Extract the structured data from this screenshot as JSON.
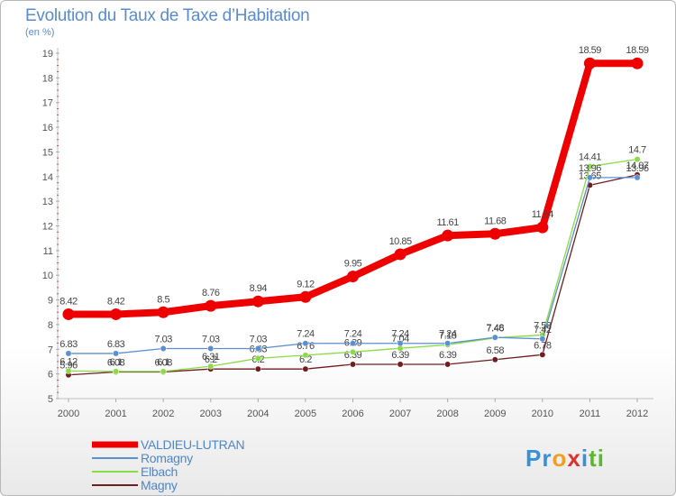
{
  "header": {
    "title": "Evolution du Taux de Taxe d’Habitation",
    "unit": "(en %)"
  },
  "logo": {
    "parts": [
      {
        "text": "Pr",
        "color": "#3a8fd9"
      },
      {
        "text": "o",
        "color": "#f0a020"
      },
      {
        "text": "x",
        "color": "#e03030"
      },
      {
        "text": "i",
        "color": "#3a8fd9"
      },
      {
        "text": "ti",
        "color": "#5ab82e"
      }
    ]
  },
  "chart_data": {
    "type": "line",
    "categories": [
      "2000",
      "2001",
      "2002",
      "2003",
      "2004",
      "2005",
      "2006",
      "2007",
      "2008",
      "2009",
      "2010",
      "2011",
      "2012"
    ],
    "ylim": [
      5,
      19
    ],
    "yticks": [
      "5",
      "6",
      "7",
      "8",
      "9",
      "10",
      "11",
      "12",
      "13",
      "14",
      "15",
      "16",
      "17",
      "18",
      "19"
    ],
    "grid": false,
    "legend_position": "bottom-left",
    "series": [
      {
        "name": "Magny",
        "color": "#6e1e1e",
        "values": [
          5.96,
          6.08,
          6.08,
          6.2,
          6.2,
          6.2,
          6.39,
          6.39,
          6.39,
          6.58,
          6.78,
          13.65,
          14.07
        ],
        "labels": [
          "5.96",
          "6.08",
          "6.08",
          "6.2",
          "6.2",
          "6.2",
          "6.39",
          "6.39",
          "6.39",
          "6.58",
          "6.78",
          "13.65",
          "14.07"
        ]
      },
      {
        "name": "Elbach",
        "color": "#88dd44",
        "values": [
          6.12,
          6.1,
          6.1,
          6.31,
          6.63,
          6.76,
          6.89,
          7.04,
          7.18,
          7.46,
          7.58,
          14.41,
          14.7
        ],
        "labels": [
          "6.12",
          "6.1",
          "6.1",
          "6.31",
          "6.63",
          "6.76",
          "6.89",
          "7.04",
          "7.18",
          "7.46",
          "7.58",
          "14.41",
          "14.7"
        ]
      },
      {
        "name": "Romagny",
        "color": "#5b8fd0",
        "values": [
          6.83,
          6.83,
          7.03,
          7.03,
          7.03,
          7.24,
          7.24,
          7.24,
          7.24,
          7.48,
          7.42,
          13.96,
          13.96
        ],
        "labels": [
          "6.83",
          "6.83",
          "7.03",
          "7.03",
          "7.03",
          "7.24",
          "7.24",
          "7.24",
          "7.24",
          "7.48",
          "7.42",
          "13.96",
          "13.96"
        ]
      },
      {
        "name": "VALDIEU-LUTRAN",
        "color": "#ee0000",
        "values": [
          8.42,
          8.42,
          8.5,
          8.76,
          8.94,
          9.12,
          9.95,
          10.85,
          11.61,
          11.68,
          11.94,
          18.59,
          18.59
        ],
        "labels": [
          "8.42",
          "8.42",
          "8.5",
          "8.76",
          "8.94",
          "9.12",
          "9.95",
          "10.85",
          "11.61",
          "11.68",
          "11.94",
          "18.59",
          "18.59"
        ]
      }
    ],
    "legend": [
      "VALDIEU-LUTRAN",
      "Romagny",
      "Elbach",
      "Magny"
    ]
  }
}
